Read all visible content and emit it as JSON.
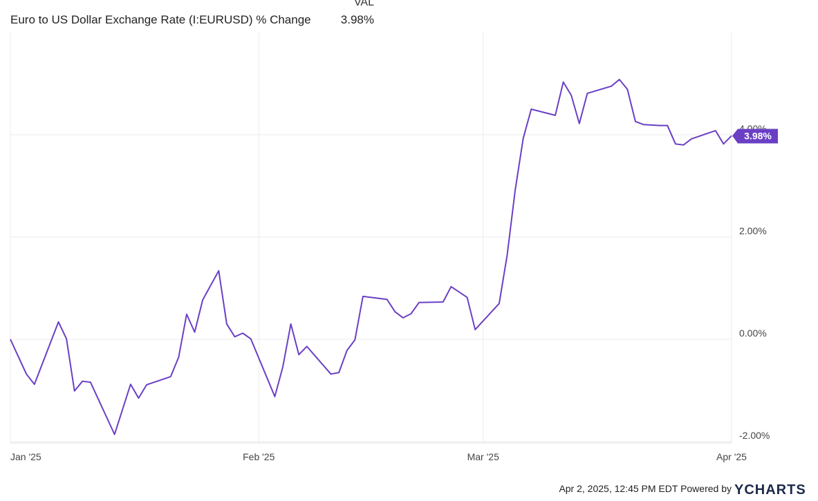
{
  "chart_data": {
    "type": "line",
    "legend_header": "VAL",
    "x": [
      0,
      2,
      3,
      6,
      7,
      8,
      9,
      10,
      13,
      15,
      16,
      17,
      20,
      21,
      22,
      23,
      24,
      26,
      27,
      28,
      29,
      30,
      33,
      34,
      35,
      36,
      37,
      40,
      41,
      42,
      43,
      44,
      47,
      48,
      49,
      50,
      51,
      54,
      55,
      57,
      58,
      61,
      62,
      63,
      64,
      65,
      68,
      69,
      70,
      71,
      72,
      75,
      76,
      77,
      78,
      79,
      81,
      82,
      83,
      84,
      85,
      88,
      89,
      90
    ],
    "series": [
      {
        "name": "Euro to US Dollar Exchange Rate (I:EURUSD) % Change",
        "color": "#6a3fc4",
        "values": [
          0,
          -0.68,
          -0.88,
          0.34,
          0.01,
          -1.01,
          -0.82,
          -0.84,
          -1.86,
          -0.88,
          -1.15,
          -0.89,
          -0.73,
          -0.35,
          0.49,
          0.14,
          0.77,
          1.34,
          0.3,
          0.05,
          0.12,
          0.01,
          -1.12,
          -0.54,
          0.3,
          -0.3,
          -0.14,
          -0.68,
          -0.65,
          -0.22,
          -0.01,
          0.84,
          0.78,
          0.54,
          0.42,
          0.5,
          0.72,
          0.73,
          1.03,
          0.82,
          0.19,
          0.7,
          1.65,
          2.92,
          3.93,
          4.5,
          4.38,
          5.03,
          4.77,
          4.22,
          4.81,
          4.95,
          5.08,
          4.89,
          4.26,
          4.2,
          4.18,
          4.18,
          3.82,
          3.8,
          3.92,
          4.08,
          3.82,
          3.98
        ],
        "value_labels": [
          null,
          null,
          null,
          null,
          null,
          null,
          null,
          null,
          null,
          null,
          null,
          null,
          null,
          null,
          null,
          null,
          null,
          null,
          null,
          null,
          null,
          null,
          null,
          null,
          null,
          null,
          null,
          null,
          null,
          null,
          null,
          null,
          null,
          null,
          null,
          null,
          null,
          null,
          null,
          null,
          null,
          null,
          null,
          null,
          null,
          null,
          null,
          null,
          null,
          null,
          null,
          null,
          null,
          null,
          null,
          null,
          null,
          null,
          null,
          null,
          null,
          null,
          null,
          "3.98%"
        ]
      }
    ],
    "xlim": [
      0,
      90
    ],
    "xticks": [
      {
        "value": 0,
        "label": "Jan '25"
      },
      {
        "value": 31,
        "label": "Feb '25"
      },
      {
        "value": 59,
        "label": "Mar '25"
      },
      {
        "value": 90,
        "label": "Apr '25"
      }
    ],
    "ylim": [
      -2,
      6
    ],
    "yticks": [
      {
        "value": -2,
        "label": "-2.00%"
      },
      {
        "value": 0,
        "label": "0.00%"
      },
      {
        "value": 2,
        "label": "2.00%"
      },
      {
        "value": 4,
        "label": "4.00%"
      }
    ],
    "grid": true
  },
  "footer": {
    "timestamp": "Apr 2, 2025, 12:45 PM EDT",
    "powered_by": "Powered by",
    "brand": "YCHARTS"
  }
}
